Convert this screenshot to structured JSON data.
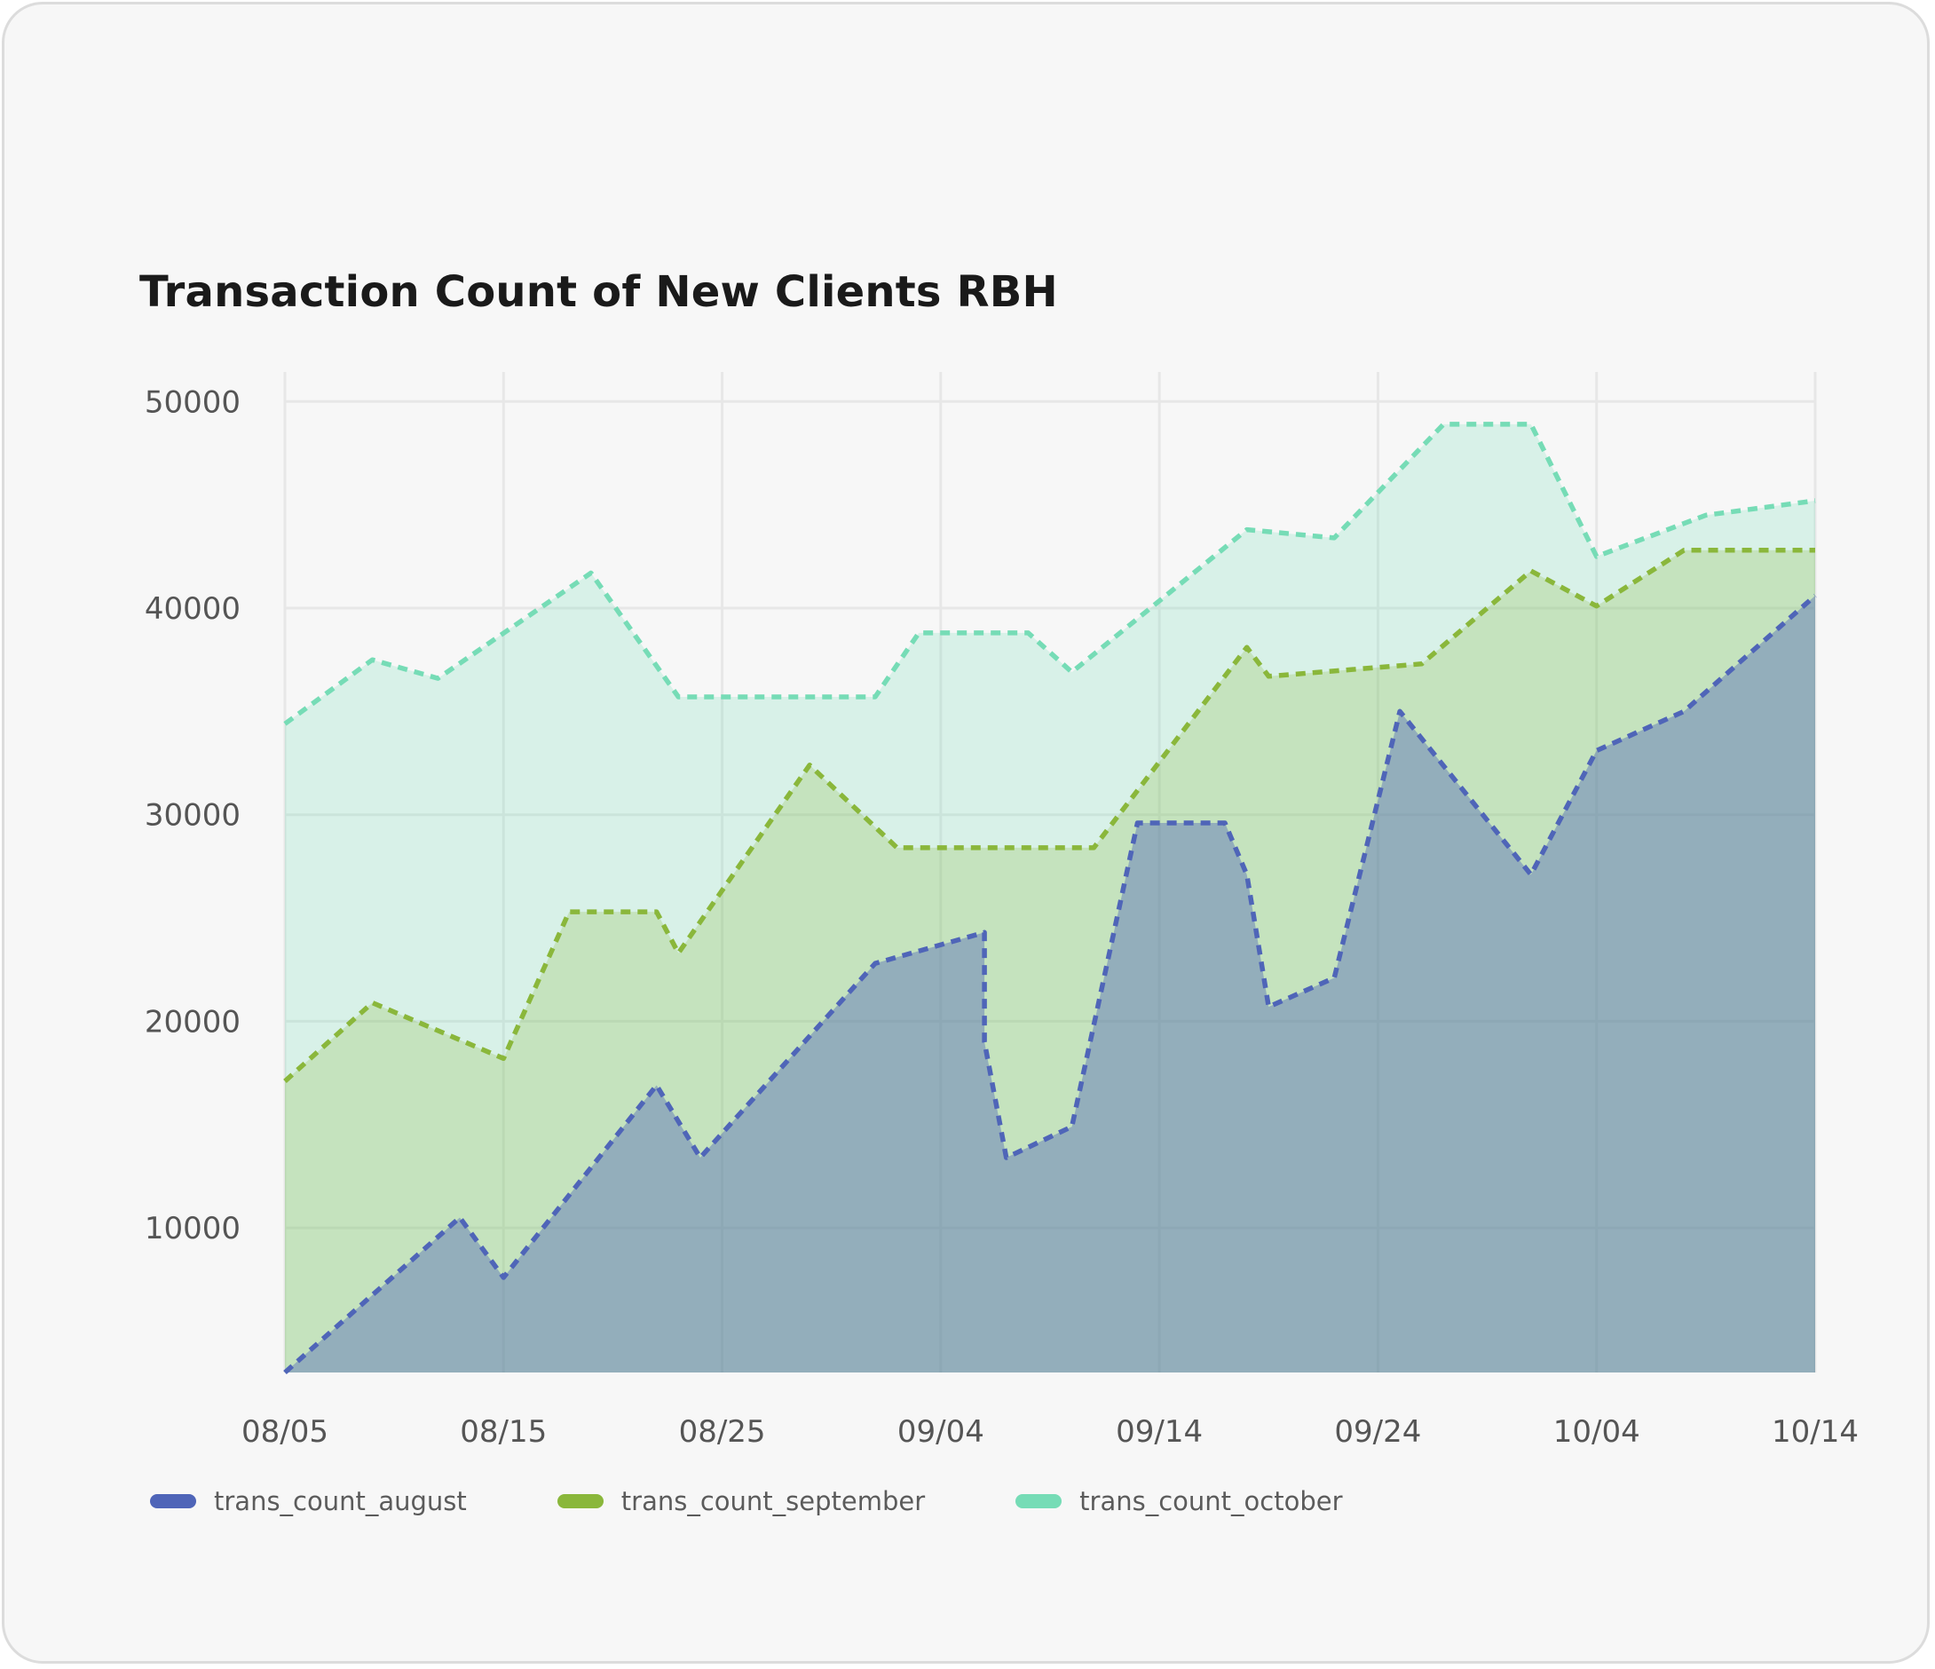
{
  "chart_data": {
    "type": "area",
    "title": "Transaction Count of New Clients RBH",
    "xlabel": "",
    "ylabel": "",
    "x_tick_labels": [
      "08/05",
      "08/15",
      "08/25",
      "09/04",
      "09/14",
      "09/24",
      "10/04",
      "10/14"
    ],
    "y_tick_labels": [
      "10000",
      "20000",
      "30000",
      "40000",
      "50000"
    ],
    "y_ticks": [
      10000,
      20000,
      30000,
      40000,
      50000
    ],
    "ylim": [
      3000,
      51000
    ],
    "grid": true,
    "legend_position": "bottom-left",
    "series": [
      {
        "name": "trans_count_august",
        "color": "#4f65b8",
        "line_style": "dashed",
        "points": [
          [
            "08/05",
            3000
          ],
          [
            "08/13",
            10500
          ],
          [
            "08/15",
            7600
          ],
          [
            "08/22",
            16900
          ],
          [
            "08/24",
            13400
          ],
          [
            "09/01",
            22800
          ],
          [
            "09/06",
            24300
          ],
          [
            "09/06",
            19000
          ],
          [
            "09/07",
            13400
          ],
          [
            "09/10",
            14900
          ],
          [
            "09/13",
            29600
          ],
          [
            "09/17",
            29600
          ],
          [
            "09/18",
            27100
          ],
          [
            "09/19",
            20700
          ],
          [
            "09/22",
            22100
          ],
          [
            "09/25",
            35000
          ],
          [
            "10/01",
            27100
          ],
          [
            "10/04",
            33100
          ],
          [
            "10/08",
            35000
          ],
          [
            "10/14",
            40600
          ]
        ]
      },
      {
        "name": "trans_count_september",
        "color": "#8ab73b",
        "line_style": "dashed",
        "points": [
          [
            "08/05",
            17100
          ],
          [
            "08/09",
            20900
          ],
          [
            "08/15",
            18200
          ],
          [
            "08/18",
            25300
          ],
          [
            "08/22",
            25300
          ],
          [
            "08/23",
            23300
          ],
          [
            "08/29",
            32400
          ],
          [
            "09/02",
            28400
          ],
          [
            "09/11",
            28400
          ],
          [
            "09/18",
            38100
          ],
          [
            "09/19",
            36700
          ],
          [
            "09/26",
            37300
          ],
          [
            "10/01",
            41800
          ],
          [
            "10/04",
            40100
          ],
          [
            "10/08",
            42800
          ],
          [
            "10/14",
            42800
          ]
        ]
      },
      {
        "name": "trans_count_october",
        "color": "#76dcb6",
        "line_style": "dashed",
        "points": [
          [
            "08/05",
            34400
          ],
          [
            "08/09",
            37500
          ],
          [
            "08/12",
            36600
          ],
          [
            "08/19",
            41700
          ],
          [
            "08/23",
            35700
          ],
          [
            "09/01",
            35700
          ],
          [
            "09/03",
            38800
          ],
          [
            "09/08",
            38800
          ],
          [
            "09/10",
            36900
          ],
          [
            "09/18",
            43800
          ],
          [
            "09/22",
            43400
          ],
          [
            "09/27",
            48900
          ],
          [
            "10/01",
            48900
          ],
          [
            "10/04",
            42500
          ],
          [
            "10/09",
            44500
          ],
          [
            "10/14",
            45200
          ]
        ]
      }
    ]
  }
}
